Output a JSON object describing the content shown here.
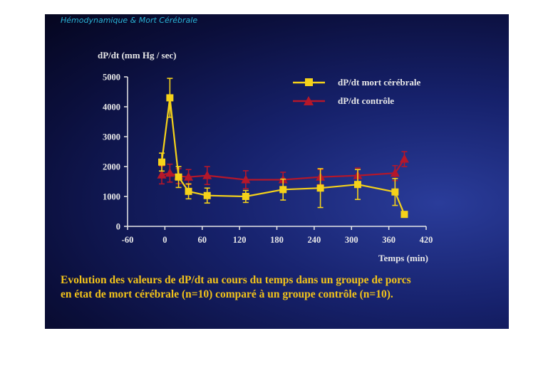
{
  "header": {
    "title": "Hémodynamique & Mort Cérébrale"
  },
  "caption": {
    "line1": "Evolution des valeurs de dP/dt au cours du temps dans un groupe de porcs",
    "line2": "en état de mort cérébrale (n=10) comparé à un groupe contrôle (n=10)."
  },
  "colors": {
    "background": "#0b0f3c",
    "brain_death": "#f5d21a",
    "control": "#b5172a",
    "caption": "#f2c31a",
    "header": "#2ab3d6"
  },
  "chart_data": {
    "type": "line",
    "ylabel": "dP/dt (mm Hg / sec)",
    "xlabel": "Temps (min)",
    "xlim": [
      -60,
      420
    ],
    "ylim": [
      0,
      5000
    ],
    "xticks": [
      -60,
      0,
      60,
      120,
      180,
      240,
      300,
      360,
      420
    ],
    "yticks": [
      0,
      1000,
      2000,
      3000,
      4000,
      5000
    ],
    "legend_position": "top-right",
    "series": [
      {
        "name": "dP/dt mort cérébrale",
        "marker": "square",
        "color": "#f5d21a",
        "x": [
          -5,
          8,
          22,
          38,
          68,
          130,
          190,
          250,
          310,
          370,
          385
        ],
        "y": [
          2150,
          4300,
          1650,
          1170,
          1030,
          1000,
          1230,
          1280,
          1400,
          1150,
          400
        ],
        "err": [
          300,
          650,
          350,
          250,
          250,
          200,
          350,
          650,
          500,
          450,
          80
        ]
      },
      {
        "name": "dP/dt contrôle",
        "marker": "triangle",
        "color": "#b5172a",
        "x": [
          -5,
          8,
          22,
          38,
          68,
          130,
          190,
          250,
          310,
          370,
          385
        ],
        "y": [
          1720,
          1780,
          1680,
          1650,
          1700,
          1560,
          1560,
          1650,
          1700,
          1780,
          2250
        ],
        "err": [
          300,
          300,
          250,
          250,
          300,
          300,
          250,
          250,
          250,
          250,
          250
        ]
      }
    ]
  }
}
